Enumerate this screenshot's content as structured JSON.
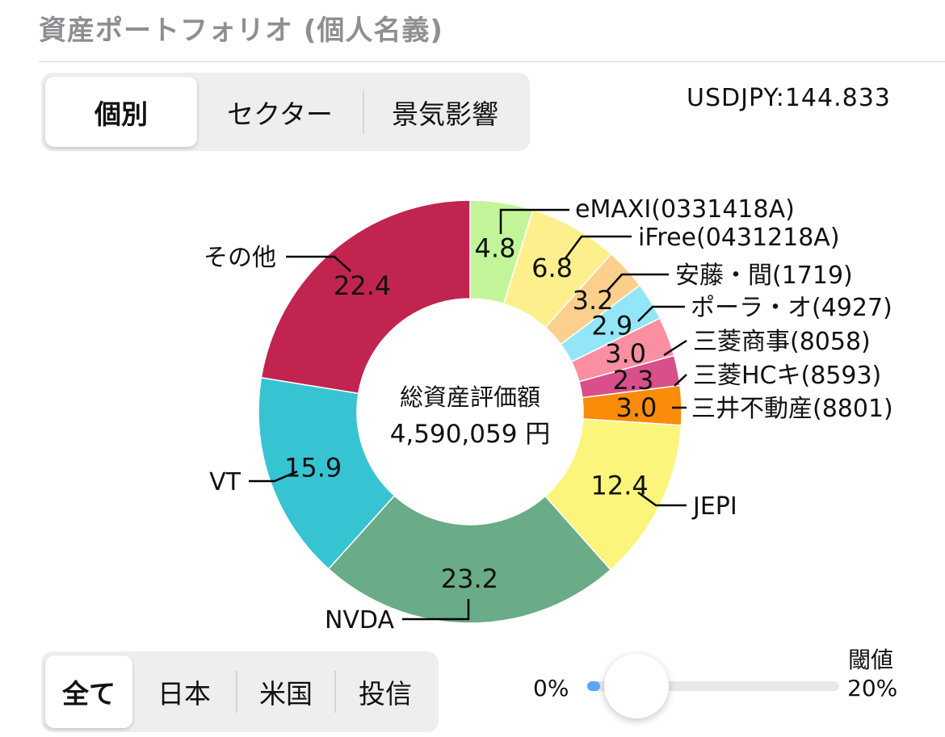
{
  "header": {
    "title": "資産ポートフォリオ (個人名義)"
  },
  "view_tabs": [
    "個別",
    "セクター",
    "景気影響"
  ],
  "view_selected": 0,
  "fx": {
    "text": "USDJPY:144.833"
  },
  "filter_tabs": [
    "全て",
    "日本",
    "米国",
    "投信"
  ],
  "filter_selected": 0,
  "threshold": {
    "label": "閾値",
    "min_label": "0%",
    "max_label": "20%",
    "value_fraction": 0.05
  },
  "chart_data": {
    "type": "pie",
    "donut": true,
    "center_label": "総資産評価額",
    "center_value": "4,590,059 円",
    "slices": [
      {
        "name": "eMAXI(0331418A)",
        "value": 4.8,
        "label": "4.8",
        "color": "#c2f59a"
      },
      {
        "name": "iFree(0431218A)",
        "value": 6.8,
        "label": "6.8",
        "color": "#fdf08c"
      },
      {
        "name": "安藤・間(1719)",
        "value": 3.2,
        "label": "3.2",
        "color": "#fcd08c"
      },
      {
        "name": "ポーラ・オ(4927)",
        "value": 2.9,
        "label": "2.9",
        "color": "#93e6f7"
      },
      {
        "name": "三菱商事(8058)",
        "value": 3.0,
        "label": "3.0",
        "color": "#fa8fa2"
      },
      {
        "name": "三菱HCキ(8593)",
        "value": 2.3,
        "label": "2.3",
        "color": "#d84f8b"
      },
      {
        "name": "三井不動産(8801)",
        "value": 3.0,
        "label": "3.0",
        "color": "#fa8c0a"
      },
      {
        "name": "JEPI",
        "value": 12.4,
        "label": "12.4",
        "color": "#fcf57c"
      },
      {
        "name": "NVDA",
        "value": 23.2,
        "label": "23.2",
        "color": "#6aab88"
      },
      {
        "name": "VT",
        "value": 15.9,
        "label": "15.9",
        "color": "#37c4d2"
      },
      {
        "name": "その他",
        "value": 22.4,
        "label": "22.4",
        "color": "#c0244f"
      }
    ]
  }
}
